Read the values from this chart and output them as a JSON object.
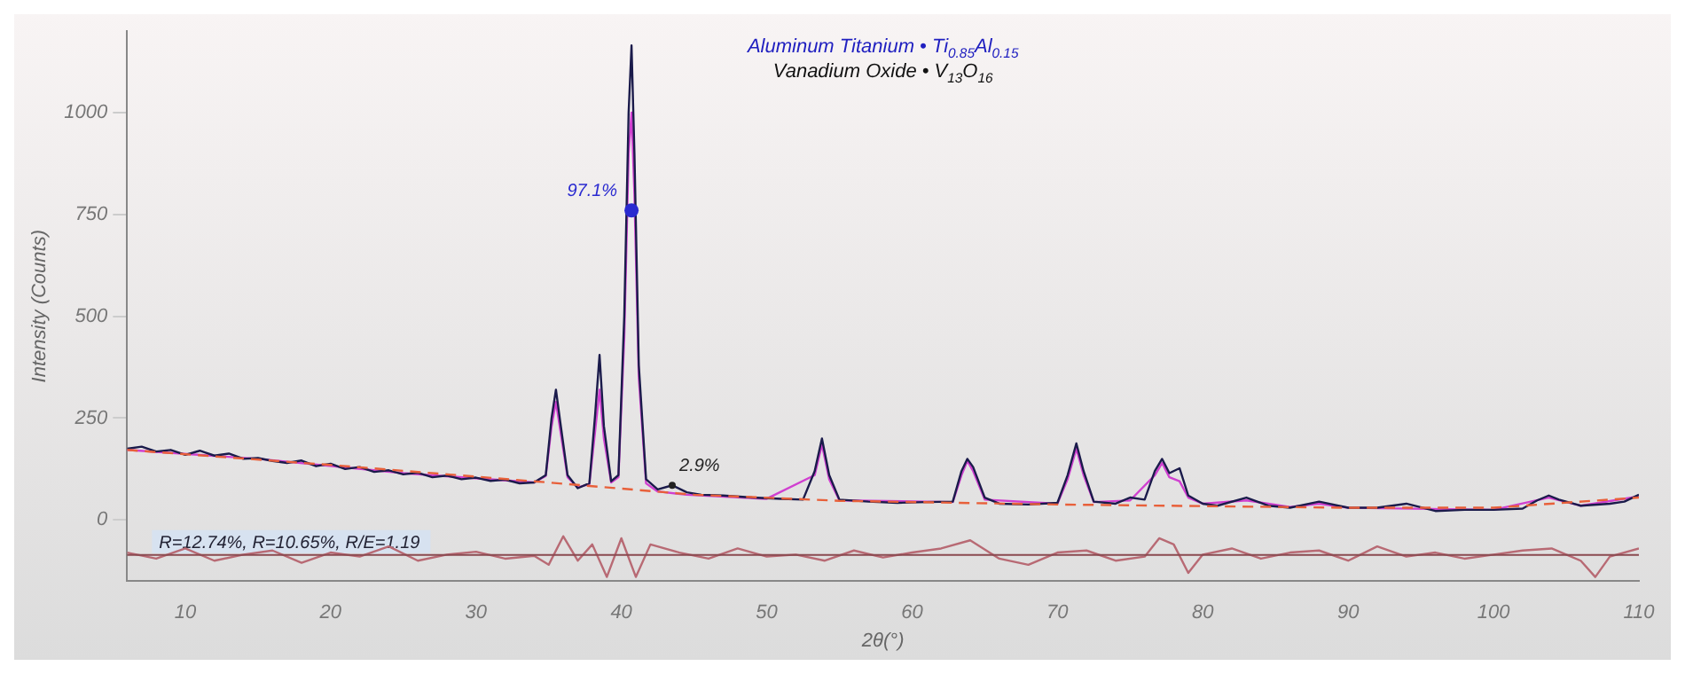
{
  "chart_data": {
    "type": "line",
    "title": "Aluminum Titanium • Ti$_{0.85}$Al$_{0.15}$",
    "subtitle": "Vanadium Oxide • V$_{13}$O$_{16}$",
    "xlabel": "2θ(°)",
    "ylabel": "Intensity (Counts)",
    "xlim": [
      6,
      110
    ],
    "xticks": [
      10,
      20,
      30,
      40,
      50,
      60,
      70,
      80,
      90,
      100,
      110
    ],
    "ylim": [
      -150,
      1200
    ],
    "yticks": [
      0,
      250,
      500,
      750,
      1000
    ],
    "grid": false,
    "legend": false,
    "marker": "none",
    "annotations": [
      {
        "text": "97.1%",
        "x": 40.7,
        "y": 760
      },
      {
        "text": "2.9%",
        "x": 43.5,
        "y": 85
      },
      "R=12.74%, R=10.65%, R/E=1.19"
    ],
    "ref_lines": [
      {
        "axis": "y",
        "value": -86,
        "color": "#8a4a50"
      }
    ],
    "series": [
      {
        "color": "#b86a74",
        "x": [
          6,
          8,
          10,
          12,
          14,
          16,
          18,
          20,
          22,
          24,
          26,
          28,
          30,
          32,
          34,
          35,
          36,
          37,
          38,
          39,
          40,
          41,
          42,
          44,
          46,
          48,
          50,
          52,
          54,
          56,
          58,
          60,
          62,
          64,
          66,
          68,
          70,
          72,
          74,
          76,
          77,
          78,
          79,
          80,
          82,
          84,
          86,
          88,
          90,
          92,
          94,
          96,
          98,
          100,
          102,
          104,
          106,
          107,
          108,
          110
        ],
        "values": [
          -80,
          -95,
          -70,
          -100,
          -85,
          -75,
          -105,
          -80,
          -90,
          -65,
          -100,
          -85,
          -78,
          -95,
          -88,
          -110,
          -40,
          -100,
          -60,
          -140,
          -45,
          -140,
          -60,
          -80,
          -95,
          -70,
          -90,
          -85,
          -100,
          -75,
          -92,
          -80,
          -70,
          -50,
          -95,
          -110,
          -80,
          -75,
          -100,
          -90,
          -45,
          -60,
          -130,
          -85,
          -70,
          -95,
          -80,
          -75,
          -100,
          -65,
          -90,
          -80,
          -95,
          -85,
          -75,
          -70,
          -100,
          -140,
          -90,
          -70
        ]
      },
      {
        "color": "#e8603a",
        "line_style": "dashed",
        "x": [
          6,
          20,
          35,
          45,
          55,
          70,
          90,
          100,
          110
        ],
        "values": [
          172,
          135,
          92,
          62,
          47,
          38,
          30,
          30,
          55
        ]
      },
      {
        "color": "#1b1b4b",
        "x": [
          6,
          7,
          8,
          9,
          10,
          11,
          12,
          13,
          14,
          15,
          16,
          17,
          18,
          19,
          20,
          21,
          22,
          23,
          24,
          25,
          26,
          27,
          28,
          29,
          30,
          31,
          32,
          33,
          34,
          34.8,
          35.2,
          35.5,
          35.8,
          36.3,
          37,
          37.8,
          38.2,
          38.5,
          38.8,
          39.3,
          39.8,
          40.2,
          40.5,
          40.7,
          40.9,
          41.2,
          41.7,
          42.5,
          43.5,
          44.5,
          45.5,
          47,
          49,
          51,
          52.5,
          53.3,
          53.8,
          54.3,
          55,
          57,
          59,
          61,
          62.8,
          63.4,
          63.8,
          64.2,
          65,
          66,
          68,
          70,
          70.7,
          71.3,
          71.8,
          72.5,
          74,
          75,
          76,
          76.7,
          77.2,
          77.7,
          78.4,
          79,
          80,
          81,
          83,
          84.5,
          86,
          88,
          90,
          92,
          94,
          96,
          98,
          100,
          102,
          103,
          103.8,
          104.5,
          106,
          108,
          109,
          110
        ],
        "values": [
          175,
          180,
          168,
          172,
          160,
          170,
          158,
          163,
          150,
          152,
          145,
          140,
          146,
          132,
          138,
          125,
          130,
          118,
          122,
          112,
          116,
          105,
          109,
          100,
          104,
          96,
          99,
          90,
          92,
          110,
          250,
          320,
          240,
          110,
          78,
          90,
          260,
          405,
          230,
          95,
          110,
          500,
          1000,
          1165,
          900,
          380,
          100,
          75,
          85,
          68,
          62,
          60,
          55,
          52,
          50,
          120,
          200,
          110,
          50,
          45,
          42,
          44,
          45,
          120,
          150,
          130,
          55,
          40,
          38,
          42,
          110,
          188,
          120,
          45,
          40,
          55,
          50,
          120,
          150,
          115,
          127,
          60,
          40,
          35,
          55,
          35,
          30,
          45,
          30,
          30,
          40,
          22,
          25,
          25,
          28,
          48,
          60,
          50,
          35,
          40,
          45,
          62
        ]
      },
      {
        "color": "#d040d0",
        "x": [
          6,
          15,
          25,
          34,
          34.8,
          35.2,
          35.5,
          35.8,
          36.3,
          37,
          37.8,
          38.2,
          38.5,
          38.8,
          39.3,
          39.8,
          40.2,
          40.5,
          40.7,
          40.9,
          41.2,
          41.7,
          42.5,
          44.5,
          50,
          53.3,
          53.8,
          54.3,
          55,
          62.8,
          63.4,
          63.8,
          64.2,
          65,
          70,
          70.7,
          71.3,
          71.8,
          72.5,
          75,
          76.7,
          77.2,
          77.7,
          78.4,
          79,
          80,
          83,
          86,
          88,
          90,
          100,
          103.8,
          106,
          110
        ],
        "values": [
          172,
          150,
          115,
          92,
          108,
          230,
          290,
          220,
          105,
          80,
          88,
          220,
          320,
          200,
          92,
          105,
          450,
          900,
          1000,
          800,
          350,
          90,
          70,
          62,
          52,
          110,
          185,
          100,
          48,
          44,
          110,
          145,
          120,
          50,
          40,
          100,
          175,
          110,
          44,
          48,
          110,
          140,
          105,
          95,
          55,
          40,
          48,
          32,
          40,
          30,
          25,
          55,
          35,
          58
        ]
      }
    ]
  }
}
